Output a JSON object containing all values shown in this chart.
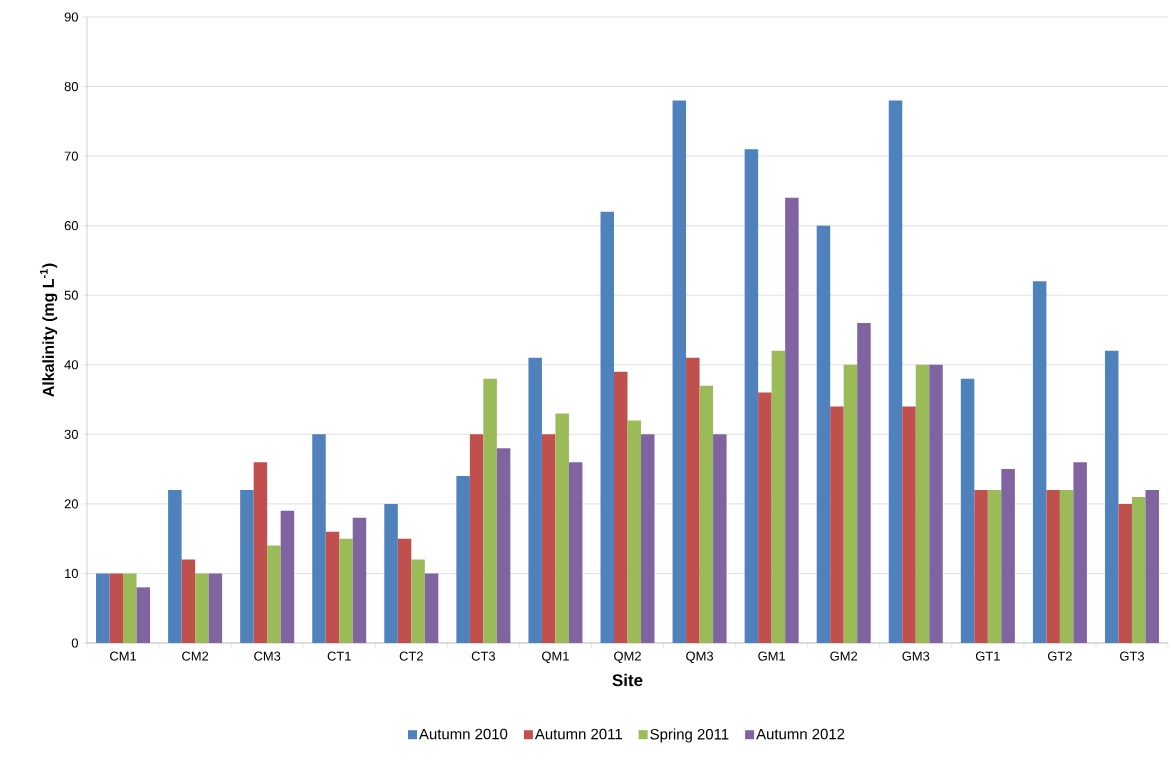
{
  "chart_data": {
    "type": "bar",
    "xlabel": "Site",
    "ylabel": "Alkalinity (mg L$^{-1}$)",
    "categories": [
      "CM1",
      "CM2",
      "CM3",
      "CT1",
      "CT2",
      "CT3",
      "QM1",
      "QM2",
      "QM3",
      "GM1",
      "GM2",
      "GM3",
      "GT1",
      "GT2",
      "GT3"
    ],
    "series": [
      {
        "name": "Autumn 2010",
        "color": "#4f81bd",
        "values": [
          10,
          22,
          22,
          30,
          20,
          24,
          41,
          62,
          78,
          71,
          60,
          78,
          38,
          52,
          42
        ]
      },
      {
        "name": "Autumn 2011",
        "color": "#c0504d",
        "values": [
          10,
          12,
          26,
          16,
          15,
          30,
          30,
          39,
          41,
          36,
          34,
          34,
          22,
          22,
          20
        ]
      },
      {
        "name": "Spring 2011",
        "color": "#9bbb59",
        "values": [
          10,
          10,
          14,
          15,
          12,
          38,
          33,
          32,
          37,
          42,
          40,
          40,
          22,
          22,
          21
        ]
      },
      {
        "name": "Autumn 2012",
        "color": "#8064a2",
        "values": [
          8,
          10,
          19,
          18,
          10,
          28,
          26,
          30,
          30,
          64,
          46,
          40,
          25,
          26,
          22
        ]
      }
    ],
    "ylim": [
      0,
      90
    ],
    "yticks": [
      0,
      10,
      20,
      30,
      40,
      50,
      60,
      70,
      80,
      90
    ],
    "grid": "y",
    "legend": "bottom"
  }
}
